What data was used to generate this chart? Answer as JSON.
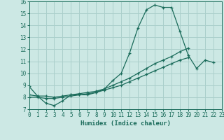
{
  "xlabel": "Humidex (Indice chaleur)",
  "bg_color": "#cce8e4",
  "grid_color": "#aacfcb",
  "line_color": "#1a6b5a",
  "xlim": [
    0,
    23
  ],
  "ylim": [
    7,
    16
  ],
  "xticks": [
    0,
    1,
    2,
    3,
    4,
    5,
    6,
    7,
    8,
    9,
    10,
    11,
    12,
    13,
    14,
    15,
    16,
    17,
    18,
    19,
    20,
    21,
    22,
    23
  ],
  "yticks": [
    7,
    8,
    9,
    10,
    11,
    12,
    13,
    14,
    15,
    16
  ],
  "series1_x": [
    0,
    1,
    2,
    3,
    4,
    5,
    6,
    7,
    8,
    9,
    10,
    11,
    12,
    13,
    14,
    15,
    16,
    17,
    18,
    19,
    20,
    21,
    22
  ],
  "series1_y": [
    8.9,
    8.1,
    7.5,
    7.3,
    7.7,
    8.2,
    8.2,
    8.2,
    8.4,
    8.7,
    9.4,
    10.0,
    11.7,
    13.8,
    15.3,
    15.7,
    15.5,
    15.5,
    13.5,
    11.5,
    10.4,
    11.1,
    10.9
  ],
  "series2_x": [
    0,
    1,
    2,
    3,
    4,
    5,
    6,
    7,
    8,
    9,
    10,
    11,
    12,
    13,
    14,
    15,
    16,
    17,
    18,
    19
  ],
  "series2_y": [
    8.0,
    8.0,
    7.9,
    7.9,
    8.0,
    8.1,
    8.2,
    8.3,
    8.4,
    8.6,
    8.8,
    9.0,
    9.3,
    9.6,
    9.9,
    10.2,
    10.5,
    10.8,
    11.1,
    11.3
  ],
  "series3_x": [
    0,
    1,
    2,
    3,
    4,
    5,
    6,
    7,
    8,
    9,
    10,
    11,
    12,
    13,
    14,
    15,
    16,
    17,
    18,
    19
  ],
  "series3_y": [
    8.2,
    8.1,
    8.1,
    8.0,
    8.1,
    8.2,
    8.3,
    8.4,
    8.5,
    8.7,
    9.0,
    9.3,
    9.6,
    10.0,
    10.4,
    10.8,
    11.1,
    11.4,
    11.8,
    12.1
  ]
}
